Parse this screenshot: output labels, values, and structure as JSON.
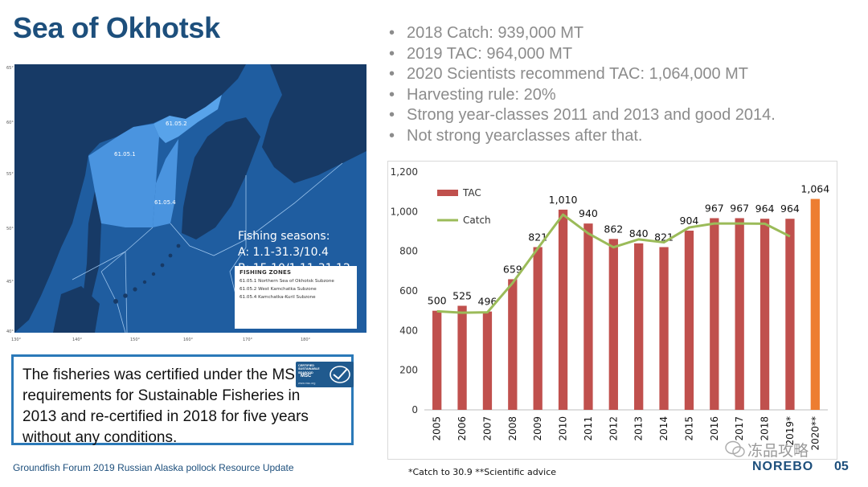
{
  "slide": {
    "title": "Sea of Okhotsk",
    "footer": "Groundfish Forum 2019 Russian Alaska pollock Resource Update",
    "page_number": "05",
    "brand": "NOREBO",
    "watermark": "冻品攻略",
    "accent_color": "#1d4f7c"
  },
  "bullets": [
    "2018 Catch: 939,000 MT",
    "2019 TAC: 964,000 MT",
    "2020 Scientists recommend TAC: 1,064,000 MT",
    "Harvesting rule: 20%",
    "Strong year-classes 2011 and 2013 and good 2014.",
    "Not strong yearclasses after that."
  ],
  "map": {
    "zone_labels": {
      "z1": "61.05.1",
      "z2": "61.05.2",
      "z4": "61.05.4"
    },
    "seasons": {
      "heading": "Fishing seasons:",
      "a": "A: 1.1-31.3/10.4",
      "b": "B: 15.10/1.11-31.12"
    },
    "legend": {
      "heading": "FISHING ZONES",
      "items": [
        "61.05.1  Northern Sea of Okhotsk Subzone",
        "61.05.2  West Kamchatka Subzone",
        "61.05.4  Kamchatka-Kuril Subzone"
      ]
    },
    "lat_labels": [
      "65°",
      "60°",
      "55°",
      "50°",
      "45°",
      "40°"
    ],
    "lon_labels": [
      "130°",
      "140°",
      "150°",
      "160°",
      "170°",
      "180°"
    ],
    "colors": {
      "sea": "#1f5da0",
      "highlight": "#4a94df",
      "land": "#173a66"
    }
  },
  "certification": {
    "text": "The fisheries was certified under the MSC requirements for Sustainable Fisheries in 2013 and re-certified in 2018 for five years without any conditions.",
    "logo": {
      "top": "CERTIFIED SUSTAINABLE SEAFOOD",
      "name": "MSC",
      "url": "www.msc.org"
    },
    "border_color": "#2b79b8"
  },
  "chart_data": {
    "type": "bar",
    "categories": [
      "2005",
      "2006",
      "2007",
      "2008",
      "2009",
      "2010",
      "2011",
      "2012",
      "2013",
      "2014",
      "2015",
      "2016",
      "2017",
      "2018",
      "2019*",
      "2020**"
    ],
    "series": [
      {
        "name": "TAC",
        "type": "bar",
        "color": "#c0504d",
        "highlight_color": "#ed7d31",
        "highlight_index": 15,
        "values": [
          500,
          525,
          496,
          659,
          821,
          1010,
          940,
          862,
          840,
          821,
          904,
          967,
          967,
          964,
          964,
          1064
        ]
      },
      {
        "name": "Catch",
        "type": "line",
        "color": "#9bbb59",
        "values": [
          497,
          490,
          492,
          640,
          815,
          985,
          890,
          820,
          860,
          845,
          920,
          940,
          940,
          939,
          875,
          null
        ]
      }
    ],
    "data_labels": [
      "500",
      "525",
      "496",
      "659",
      "821",
      "1,010",
      "940",
      "862",
      "840",
      "821",
      "904",
      "967",
      "967",
      "964",
      "964",
      "1,064"
    ],
    "yticks": [
      "0",
      "200",
      "400",
      "600",
      "800",
      "1,000",
      "1,200"
    ],
    "ylim": [
      0,
      1200
    ],
    "grid": false,
    "legend": "top-left",
    "note": "*Catch to 30.9  **Scientific advice"
  }
}
